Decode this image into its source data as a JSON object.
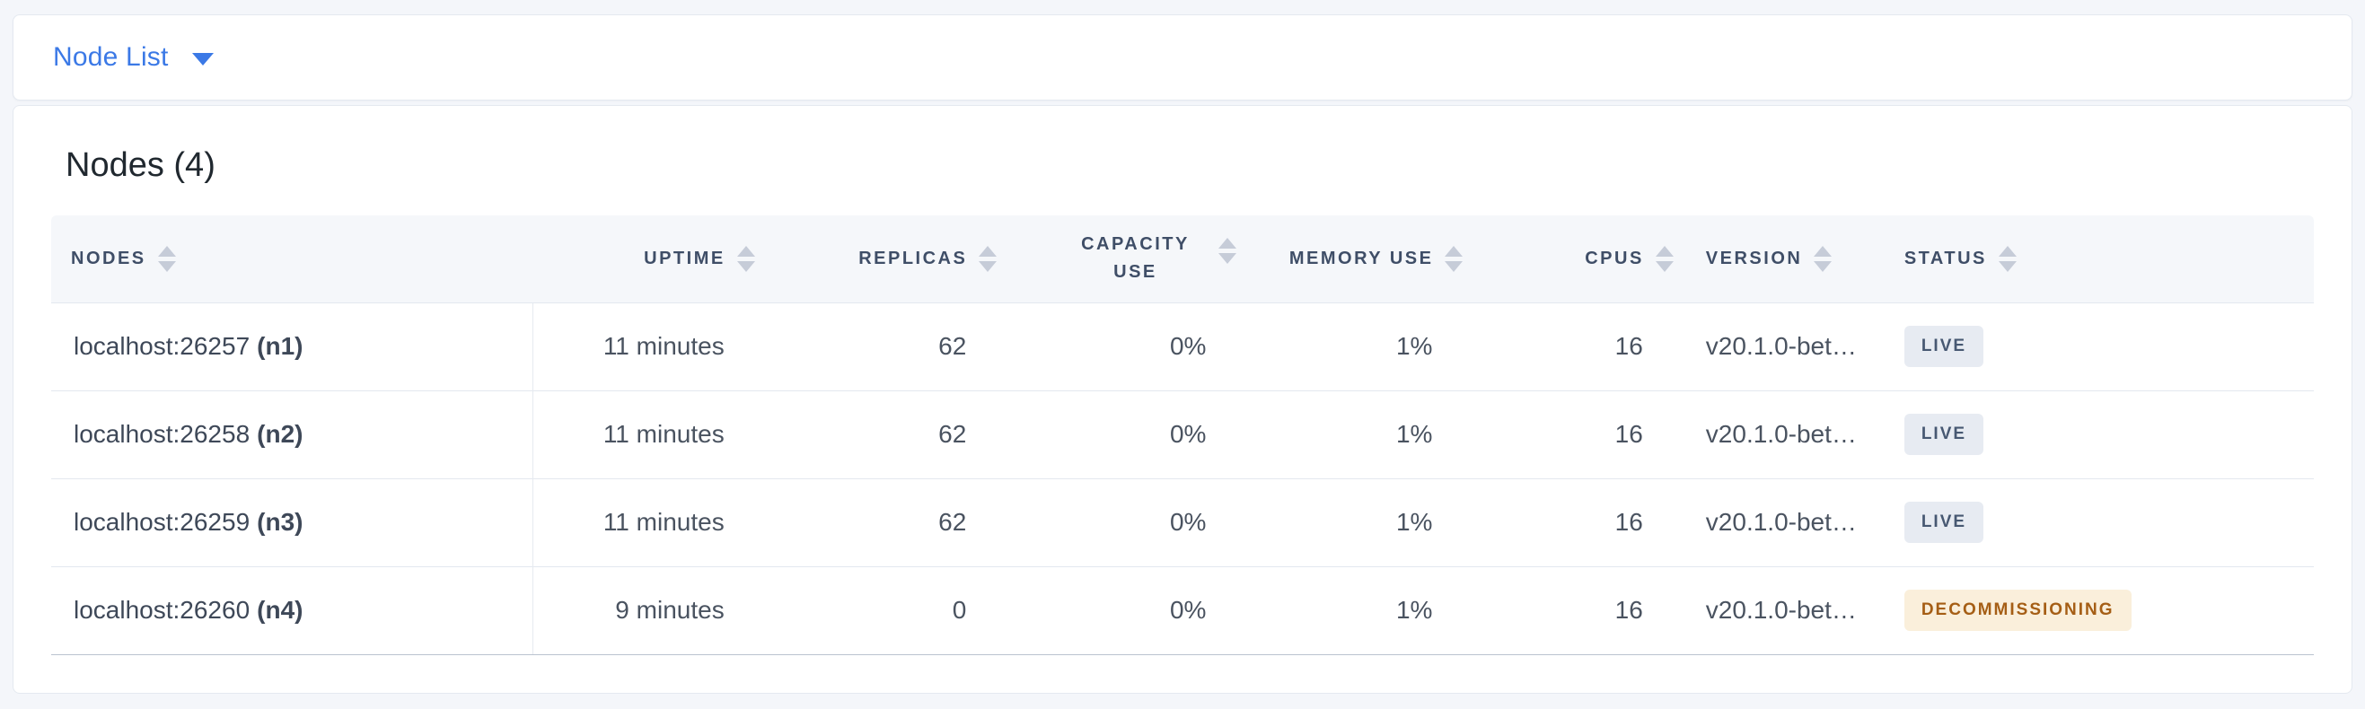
{
  "toolbar": {
    "view_selector_label": "Node List"
  },
  "main": {
    "title": "Nodes (4)",
    "table": {
      "columns": [
        {
          "key": "nodes",
          "label": "NODES",
          "sortable": true
        },
        {
          "key": "uptime",
          "label": "UPTIME",
          "sortable": true
        },
        {
          "key": "replicas",
          "label": "REPLICAS",
          "sortable": true
        },
        {
          "key": "capacity_use",
          "label": "CAPACITY USE",
          "sortable": true
        },
        {
          "key": "memory_use",
          "label": "MEMORY USE",
          "sortable": true
        },
        {
          "key": "cpus",
          "label": "CPUS",
          "sortable": true
        },
        {
          "key": "version",
          "label": "VERSION",
          "sortable": true
        },
        {
          "key": "status",
          "label": "STATUS",
          "sortable": true
        }
      ],
      "rows": [
        {
          "address": "localhost:26257",
          "node_id": "(n1)",
          "uptime": "11 minutes",
          "replicas": "62",
          "capacity_use": "0%",
          "memory_use": "1%",
          "cpus": "16",
          "version": "v20.1.0-bet…",
          "status": "LIVE",
          "status_type": "live"
        },
        {
          "address": "localhost:26258",
          "node_id": "(n2)",
          "uptime": "11 minutes",
          "replicas": "62",
          "capacity_use": "0%",
          "memory_use": "1%",
          "cpus": "16",
          "version": "v20.1.0-bet…",
          "status": "LIVE",
          "status_type": "live"
        },
        {
          "address": "localhost:26259",
          "node_id": "(n3)",
          "uptime": "11 minutes",
          "replicas": "62",
          "capacity_use": "0%",
          "memory_use": "1%",
          "cpus": "16",
          "version": "v20.1.0-bet…",
          "status": "LIVE",
          "status_type": "live"
        },
        {
          "address": "localhost:26260",
          "node_id": "(n4)",
          "uptime": "9 minutes",
          "replicas": "0",
          "capacity_use": "0%",
          "memory_use": "1%",
          "cpus": "16",
          "version": "v20.1.0-bet…",
          "status": "DECOMMISSIONING",
          "status_type": "decommissioning"
        }
      ]
    }
  },
  "colors": {
    "page_bg": "#f4f6fa",
    "accent_blue": "#3b79e6",
    "header_text": "#3f4e67",
    "badge_live_bg": "#e7ebf2",
    "badge_live_text": "#475872",
    "badge_decommissioning_bg": "#faefdb",
    "badge_decommissioning_text": "#a55e15"
  }
}
